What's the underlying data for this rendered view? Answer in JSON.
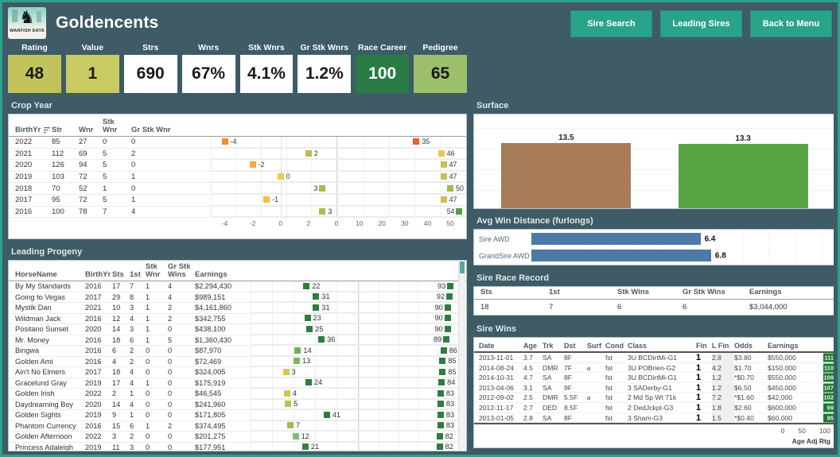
{
  "brand": {
    "logo_text": "WARFISH DATA",
    "title": "Goldencents"
  },
  "nav": {
    "buttons": [
      {
        "label": "Sire Search"
      },
      {
        "label": "Leading Sires"
      },
      {
        "label": "Back to Menu"
      }
    ]
  },
  "colors": {
    "background": "#3E5B66",
    "accent_teal": "#2AA38B",
    "bar_blue": "#4E79A7",
    "dirt_brown": "#A87C58",
    "turf_green": "#58A546",
    "dark_green": "#2E7D3F"
  },
  "stats": [
    {
      "label": "Rating",
      "value": "48",
      "bg": "#c2c35a",
      "fg": "#1a1a1a"
    },
    {
      "label": "Value",
      "value": "1",
      "bg": "#c8ca62",
      "fg": "#1a1a1a"
    },
    {
      "label": "Strs",
      "value": "690",
      "bg": "#ffffff",
      "fg": "#1a1a1a"
    },
    {
      "label": "Wnrs",
      "value": "67%",
      "bg": "#ffffff",
      "fg": "#1a1a1a"
    },
    {
      "label": "Stk Wnrs",
      "value": "4.1%",
      "bg": "#ffffff",
      "fg": "#1a1a1a"
    },
    {
      "label": "Gr Stk Wnrs",
      "value": "1.2%",
      "bg": "#ffffff",
      "fg": "#1a1a1a"
    },
    {
      "label": "Race Career",
      "value": "100",
      "bg": "#2a7b45",
      "fg": "#ffffff"
    },
    {
      "label": "Pedigree",
      "value": "65",
      "bg": "#9cbf6b",
      "fg": "#1a1a1a"
    }
  ],
  "crop_year": {
    "title": "Crop Year",
    "columns": [
      "BirthYr",
      "Str",
      "Wnr",
      "Stk\nWnr",
      "Gr Stk Wnr"
    ],
    "axis_delta": [
      "-4",
      "-2",
      "0",
      "2"
    ],
    "axis_rtg": [
      "0",
      "10",
      "20",
      "30",
      "40",
      "50"
    ],
    "rows": [
      {
        "year": "2022",
        "str": "85",
        "wnr": "27",
        "stk": "0",
        "gr": "0",
        "delta": -4,
        "delta_color": "#F28C28",
        "delta_side": "r",
        "rtg": 35,
        "rtg_color": "#E9632B",
        "rtg_side": "r"
      },
      {
        "year": "2021",
        "str": "112",
        "wnr": "69",
        "stk": "5",
        "gr": "2",
        "delta": 2,
        "delta_color": "#BDBD50",
        "delta_side": "r",
        "rtg": 46,
        "rtg_color": "#E9C94D",
        "rtg_side": "r"
      },
      {
        "year": "2020",
        "str": "126",
        "wnr": "94",
        "stk": "5",
        "gr": "0",
        "delta": -2,
        "delta_color": "#F5A93F",
        "delta_side": "r",
        "rtg": 47,
        "rtg_color": "#C6C253",
        "rtg_side": "r"
      },
      {
        "year": "2019",
        "str": "103",
        "wnr": "72",
        "stk": "5",
        "gr": "1",
        "delta": 0,
        "delta_color": "#EFC94B",
        "delta_side": "r",
        "rtg": 47,
        "rtg_color": "#C6C253",
        "rtg_side": "r"
      },
      {
        "year": "2018",
        "str": "70",
        "wnr": "52",
        "stk": "1",
        "gr": "0",
        "delta": 3,
        "delta_color": "#B0B94E",
        "delta_side": "l",
        "rtg": 50,
        "rtg_color": "#A3BA4D",
        "rtg_side": "r"
      },
      {
        "year": "2017",
        "str": "95",
        "wnr": "72",
        "stk": "5",
        "gr": "1",
        "delta": -1,
        "delta_color": "#F2BD47",
        "delta_side": "r",
        "rtg": 47,
        "rtg_color": "#C6C253",
        "rtg_side": "r"
      },
      {
        "year": "2016",
        "str": "100",
        "wnr": "78",
        "stk": "7",
        "gr": "4",
        "delta": 3,
        "delta_color": "#B0B94E",
        "delta_side": "r",
        "rtg": 54,
        "rtg_color": "#55A045",
        "rtg_side": "l"
      }
    ]
  },
  "leading_progeny": {
    "title": "Leading Progeny",
    "columns": [
      "HorseName",
      "BirthYr",
      "Sts",
      "1st",
      "Stk\nWnr",
      "Gr Stk\nWins",
      "Earnings"
    ],
    "rows": [
      {
        "name": "By My Standards",
        "birth": "2016",
        "sts": "17",
        "first": "7",
        "stk": "1",
        "gr": "4",
        "earnings": "$2,294,430",
        "v1": 22,
        "c1": "#2e7d3f",
        "v2": 93,
        "c2": "#2e7d3f"
      },
      {
        "name": "Going to Vegas",
        "birth": "2017",
        "sts": "29",
        "first": "8",
        "stk": "1",
        "gr": "4",
        "earnings": "$989,151",
        "v1": 31,
        "c1": "#2e7d3f",
        "v2": 92,
        "c2": "#2e7d3f"
      },
      {
        "name": "Mystik Dan",
        "birth": "2021",
        "sts": "10",
        "first": "3",
        "stk": "1",
        "gr": "2",
        "earnings": "$4,161,860",
        "v1": 31,
        "c1": "#2e7d3f",
        "v2": 90,
        "c2": "#2e7d3f"
      },
      {
        "name": "Wildman Jack",
        "birth": "2016",
        "sts": "12",
        "first": "4",
        "stk": "1",
        "gr": "2",
        "earnings": "$342,755",
        "v1": 23,
        "c1": "#2e7d3f",
        "v2": 90,
        "c2": "#2e7d3f"
      },
      {
        "name": "Positano Sunset",
        "birth": "2020",
        "sts": "14",
        "first": "3",
        "stk": "1",
        "gr": "0",
        "earnings": "$438,100",
        "v1": 25,
        "c1": "#2e7d3f",
        "v2": 90,
        "c2": "#2e7d3f"
      },
      {
        "name": "Mr. Money",
        "birth": "2016",
        "sts": "18",
        "first": "6",
        "stk": "1",
        "gr": "5",
        "earnings": "$1,360,430",
        "v1": 36,
        "c1": "#2e7d3f",
        "v2": 89,
        "c2": "#2e7d3f"
      },
      {
        "name": "Bingwa",
        "birth": "2016",
        "sts": "6",
        "first": "2",
        "stk": "0",
        "gr": "0",
        "earnings": "$87,970",
        "v1": 14,
        "c1": "#6fb25d",
        "v2": 86,
        "c2": "#2e7d3f"
      },
      {
        "name": "Golden Ami",
        "birth": "2016",
        "sts": "4",
        "first": "2",
        "stk": "0",
        "gr": "0",
        "earnings": "$72,469",
        "v1": 13,
        "c1": "#79b765",
        "v2": 85,
        "c2": "#2e7d3f"
      },
      {
        "name": "Ain't No Elmers",
        "birth": "2017",
        "sts": "18",
        "first": "4",
        "stk": "0",
        "gr": "0",
        "earnings": "$324,005",
        "v1": 3,
        "c1": "#d9c84c",
        "v2": 85,
        "c2": "#2e7d3f"
      },
      {
        "name": "Gracelund Gray",
        "birth": "2019",
        "sts": "17",
        "first": "4",
        "stk": "1",
        "gr": "0",
        "earnings": "$175,919",
        "v1": 24,
        "c1": "#2e7d3f",
        "v2": 84,
        "c2": "#2e7d3f"
      },
      {
        "name": "Golden Irish",
        "birth": "2022",
        "sts": "2",
        "first": "1",
        "stk": "0",
        "gr": "0",
        "earnings": "$46,545",
        "v1": 4,
        "c1": "#cfc64e",
        "v2": 83,
        "c2": "#2e7d3f"
      },
      {
        "name": "Daydreaming Boy",
        "birth": "2020",
        "sts": "14",
        "first": "4",
        "stk": "0",
        "gr": "0",
        "earnings": "$241,960",
        "v1": 5,
        "c1": "#c2c04f",
        "v2": 83,
        "c2": "#2e7d3f"
      },
      {
        "name": "Golden Sights",
        "birth": "2019",
        "sts": "9",
        "first": "1",
        "stk": "0",
        "gr": "0",
        "earnings": "$171,805",
        "v1": 41,
        "c1": "#2e7d3f",
        "v2": 83,
        "c2": "#2e7d3f"
      },
      {
        "name": "Phantom Currency",
        "birth": "2016",
        "sts": "15",
        "first": "6",
        "stk": "1",
        "gr": "2",
        "earnings": "$374,495",
        "v1": 7,
        "c1": "#a8ba4e",
        "v2": 83,
        "c2": "#2e7d3f"
      },
      {
        "name": "Golden Afternoon",
        "birth": "2022",
        "sts": "3",
        "first": "2",
        "stk": "0",
        "gr": "0",
        "earnings": "$201,275",
        "v1": 12,
        "c1": "#84bd6e",
        "v2": 82,
        "c2": "#2e7d3f"
      },
      {
        "name": "Princess Adaleigh",
        "birth": "2019",
        "sts": "11",
        "first": "3",
        "stk": "0",
        "gr": "0",
        "earnings": "$177,951",
        "v1": 21,
        "c1": "#338340",
        "v2": 82,
        "c2": "#2e7d3f"
      },
      {
        "name": "",
        "birth": "",
        "sts": "",
        "first": "",
        "stk": "",
        "gr": "",
        "earnings": "",
        "v1": 21,
        "c1": "#6fb25d",
        "v2": 82,
        "c2": "#2e7d3f",
        "partial": true
      }
    ]
  },
  "surface": {
    "title": "Surface",
    "bars": [
      {
        "label": "SireDirt",
        "value": 13.5,
        "color": "#A87C58"
      },
      {
        "label": "SireTurf",
        "value": 13.3,
        "color": "#58A546"
      }
    ]
  },
  "awd": {
    "title": "Avg Win Distance (furlongs)",
    "bars": [
      {
        "label": "Sire AWD",
        "value": 6.4
      },
      {
        "label": "GrandSire AWD",
        "value": 6.8
      }
    ]
  },
  "sire_race_record": {
    "title": "Sire Race Record",
    "columns": [
      "Sts",
      "1st",
      "Stk Wins",
      "Gr Stk Wins",
      "Earnings"
    ],
    "row": {
      "sts": "18",
      "first": "7",
      "stk": "6",
      "gr": "6",
      "earnings": "$3,044,000",
      "rating": "100"
    }
  },
  "sire_wins": {
    "title": "Sire Wins",
    "columns": [
      "Date",
      "Age",
      "Trk",
      "Dst",
      "Surf",
      "Cond",
      "Class",
      "Fin",
      "L Fin",
      "Odds",
      "Earnings"
    ],
    "axis_ticks": [
      "0",
      "50",
      "100"
    ],
    "axis_label": "Age Adj Rtg",
    "rows": [
      {
        "date": "2013-11-01",
        "age": "3.7",
        "trk": "SA",
        "dst": "8F",
        "surf": "",
        "cond": "fst",
        "cls": "3U BCDirtMi-G1",
        "fin": "1",
        "lfin": "2.8",
        "odds": "$3.80",
        "earnings": "$550,000",
        "rtg": 111
      },
      {
        "date": "2014-08-24",
        "age": "4.5",
        "trk": "DMR",
        "dst": "7F",
        "surf": "a",
        "cond": "fst",
        "cls": "3U POBrien-G2",
        "fin": "1",
        "lfin": "4.2",
        "odds": "$1.70",
        "earnings": "$150,000",
        "rtg": 110
      },
      {
        "date": "2014-10-31",
        "age": "4.7",
        "trk": "SA",
        "dst": "8F",
        "surf": "",
        "cond": "fst",
        "cls": "3U BCDirtMi-G1",
        "fin": "1",
        "lfin": "1.2",
        "odds": "*$0.70",
        "earnings": "$550,000",
        "rtg": 109
      },
      {
        "date": "2013-04-06",
        "age": "3.1",
        "trk": "SA",
        "dst": "9F",
        "surf": "",
        "cond": "fst",
        "cls": "3 SADerby-G1",
        "fin": "1",
        "lfin": "1.2",
        "odds": "$6.50",
        "earnings": "$450,000",
        "rtg": 107
      },
      {
        "date": "2012-09-02",
        "age": "2.5",
        "trk": "DMR",
        "dst": "5.5F",
        "surf": "a",
        "cond": "fst",
        "cls": "2 Md Sp Wt 71k",
        "fin": "1",
        "lfin": "7.2",
        "odds": "*$1.60",
        "earnings": "$42,000",
        "rtg": 102
      },
      {
        "date": "2012-11-17",
        "age": "2.7",
        "trk": "DED",
        "dst": "8.5F",
        "surf": "",
        "cond": "fst",
        "cls": "2 DedJckpt-G3",
        "fin": "1",
        "lfin": "1.8",
        "odds": "$2.60",
        "earnings": "$600,000",
        "rtg": 99
      },
      {
        "date": "2013-01-05",
        "age": "2.8",
        "trk": "SA",
        "dst": "8F",
        "surf": "",
        "cond": "fst",
        "cls": "3 Sham-G3",
        "fin": "1",
        "lfin": "1.5",
        "odds": "*$0.40",
        "earnings": "$60,000",
        "rtg": 95
      }
    ]
  },
  "chart_data": [
    {
      "type": "bar",
      "title": "Surface",
      "categories": [
        "SireDirt",
        "SireTurf"
      ],
      "values": [
        13.5,
        13.3
      ],
      "ylim": [
        0,
        14
      ]
    },
    {
      "type": "bar",
      "title": "Avg Win Distance (furlongs)",
      "categories": [
        "Sire AWD",
        "GrandSire AWD"
      ],
      "values": [
        6.4,
        6.8
      ]
    },
    {
      "type": "scatter",
      "title": "Crop Year strip plot",
      "categories": [
        "2022",
        "2021",
        "2020",
        "2019",
        "2018",
        "2017",
        "2016"
      ],
      "series": [
        {
          "name": "Delta",
          "values": [
            -4,
            2,
            -2,
            0,
            3,
            -1,
            3
          ],
          "xlim": [
            -5,
            4
          ]
        },
        {
          "name": "Rating",
          "values": [
            35,
            46,
            47,
            47,
            50,
            47,
            54
          ],
          "xlim": [
            0,
            57
          ]
        }
      ]
    },
    {
      "type": "scatter",
      "title": "Leading Progeny ratings",
      "categories": [
        "By My Standards",
        "Going to Vegas",
        "Mystik Dan",
        "Wildman Jack",
        "Positano Sunset",
        "Mr. Money",
        "Bingwa",
        "Golden Ami",
        "Ain't No Elmers",
        "Gracelund Gray",
        "Golden Irish",
        "Daydreaming Boy",
        "Golden Sights",
        "Phantom Currency",
        "Golden Afternoon",
        "Princess Adaleigh"
      ],
      "series": [
        {
          "name": "Value",
          "values": [
            22,
            31,
            31,
            23,
            25,
            36,
            14,
            13,
            3,
            24,
            4,
            5,
            41,
            7,
            12,
            21
          ]
        },
        {
          "name": "Rating",
          "values": [
            93,
            92,
            90,
            90,
            90,
            89,
            86,
            85,
            85,
            84,
            83,
            83,
            83,
            83,
            82,
            82
          ],
          "xlim": [
            0,
            100
          ]
        }
      ]
    },
    {
      "type": "scatter",
      "title": "Sire Wins Age Adj Rtg",
      "xlabel": "Age Adj Rtg",
      "xlim": [
        0,
        100
      ],
      "categories": [
        "2013-11-01",
        "2014-08-24",
        "2014-10-31",
        "2013-04-06",
        "2012-09-02",
        "2012-11-17",
        "2013-01-05"
      ],
      "values": [
        111,
        110,
        109,
        107,
        102,
        99,
        95
      ]
    }
  ]
}
